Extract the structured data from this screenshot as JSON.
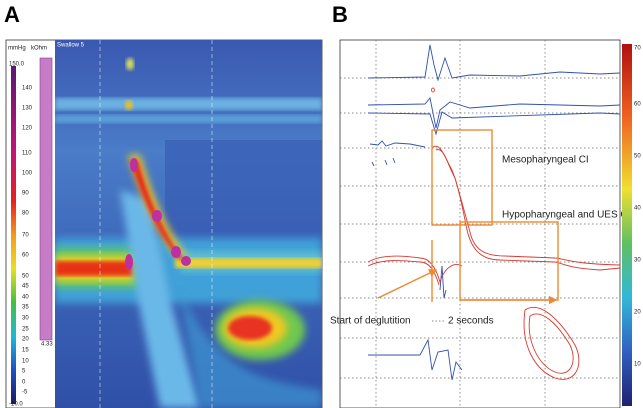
{
  "panels": [
    {
      "letter": "A",
      "unit_left": "mmHg",
      "unit_right": "kOhm",
      "recording": "Swallow 5",
      "scale_labels": [
        "150.0",
        "140",
        "130",
        "120",
        "110",
        "100",
        "90",
        "80",
        "70",
        "60",
        "50",
        "45",
        "40",
        "35",
        "30",
        "25",
        "20",
        "15",
        "10",
        "5",
        "0",
        "-5",
        "-10.0"
      ],
      "impedance_label": "4.33"
    },
    {
      "letter": "B",
      "scale_labels": [
        "70",
        "60",
        "50",
        "40",
        "30",
        "20",
        "10"
      ],
      "annotations": [
        "Mesopharyngeal CI",
        "Hypopharyngeal and UES CI",
        "Start of deglutition",
        "2 seconds"
      ]
    }
  ]
}
